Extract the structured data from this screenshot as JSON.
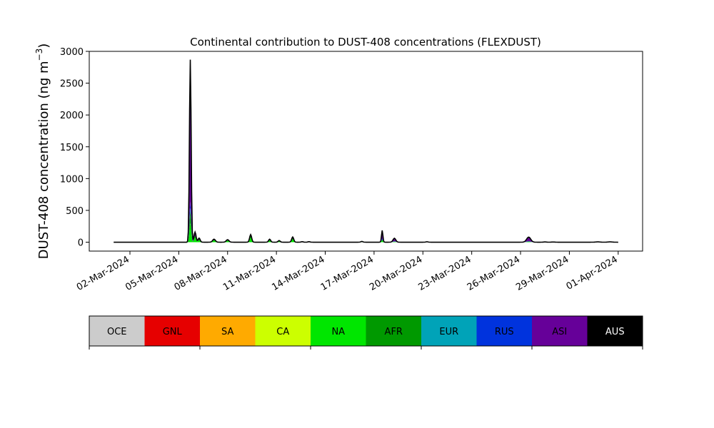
{
  "chart_data": {
    "type": "area",
    "stacked": true,
    "title": "Continental contribution to DUST-408 concentrations (FLEXDUST)",
    "ylabel_main": "DUST-408 concentration (ng m",
    "ylabel_sup": "−3",
    "ylabel_close": ")",
    "x_start": "2024-03-01",
    "x_end": "2024-04-01",
    "xlim": [
      "2024-02-28T12:00",
      "2024-04-02T12:00"
    ],
    "xticks": [
      "2024-03-02",
      "2024-03-05",
      "2024-03-08",
      "2024-03-11",
      "2024-03-14",
      "2024-03-17",
      "2024-03-20",
      "2024-03-23",
      "2024-03-26",
      "2024-03-29",
      "2024-04-01"
    ],
    "xtick_labels": [
      "02-Mar-2024",
      "05-Mar-2024",
      "08-Mar-2024",
      "11-Mar-2024",
      "14-Mar-2024",
      "17-Mar-2024",
      "20-Mar-2024",
      "23-Mar-2024",
      "26-Mar-2024",
      "29-Mar-2024",
      "01-Apr-2024"
    ],
    "ylim": [
      -140,
      3000
    ],
    "yticks": [
      0,
      500,
      1000,
      1500,
      2000,
      2500,
      3000
    ],
    "grid": false,
    "series_order": [
      "OCE",
      "GNL",
      "SA",
      "CA",
      "NA",
      "AFR",
      "EUR",
      "RUS",
      "ASI",
      "AUS"
    ],
    "colors": {
      "OCE": "#cccccc",
      "GNL": "#e60000",
      "SA": "#ffaa00",
      "CA": "#ccff00",
      "NA": "#00e600",
      "AFR": "#009900",
      "EUR": "#00a3b8",
      "RUS": "#0033dd",
      "ASI": "#660099",
      "AUS": "#000000"
    },
    "events": [
      {
        "t": "2024-03-05T17:00",
        "w": 2.5,
        "NA": 300,
        "AFR": 200,
        "EUR": 40,
        "RUS": 100,
        "ASI": 2100,
        "AUS": 130
      },
      {
        "t": "2024-03-06T00:00",
        "w": 3,
        "NA": 70,
        "AFR": 30,
        "ASI": 40,
        "AUS": 20
      },
      {
        "t": "2024-03-06T06:00",
        "w": 3,
        "NA": 30,
        "AFR": 15,
        "ASI": 10,
        "AUS": 10
      },
      {
        "t": "2024-03-07T04:00",
        "w": 4,
        "NA": 25,
        "AFR": 10,
        "ASI": 5,
        "AUS": 8
      },
      {
        "t": "2024-03-08T00:00",
        "w": 4,
        "NA": 20,
        "AFR": 8,
        "ASI": 5,
        "AUS": 7
      },
      {
        "t": "2024-03-09T10:00",
        "w": 3,
        "NA": 70,
        "AFR": 25,
        "ASI": 10,
        "AUS": 15
      },
      {
        "t": "2024-03-10T14:00",
        "w": 3,
        "NA": 25,
        "AFR": 10,
        "ASI": 5,
        "AUS": 7
      },
      {
        "t": "2024-03-11T04:00",
        "w": 3,
        "NA": 15,
        "AFR": 5,
        "AUS": 5
      },
      {
        "t": "2024-03-12T00:00",
        "w": 3,
        "NA": 45,
        "AFR": 15,
        "ASI": 10,
        "AUS": 12
      },
      {
        "t": "2024-03-12T14:00",
        "w": 3,
        "ASI": 6,
        "AUS": 2
      },
      {
        "t": "2024-03-13T00:00",
        "w": 3,
        "ASI": 6,
        "AUS": 2
      },
      {
        "t": "2024-03-16T06:00",
        "w": 3,
        "NA": 8,
        "ASI": 4
      },
      {
        "t": "2024-03-17T12:00",
        "w": 2,
        "NA": 30,
        "AFR": 10,
        "EUR": 5,
        "RUS": 15,
        "ASI": 110,
        "AUS": 15
      },
      {
        "t": "2024-03-18T06:00",
        "w": 4,
        "NA": 8,
        "AFR": 3,
        "RUS": 5,
        "ASI": 40,
        "AUS": 6
      },
      {
        "t": "2024-03-20T06:00",
        "w": 3,
        "ASI": 5,
        "AUS": 2
      },
      {
        "t": "2024-03-26T12:00",
        "w": 6,
        "NA": 8,
        "AFR": 4,
        "RUS": 5,
        "ASI": 55,
        "AUS": 8
      },
      {
        "t": "2024-03-27T12:00",
        "w": 4,
        "ASI": 4
      },
      {
        "t": "2024-03-28T00:00",
        "w": 4,
        "ASI": 3
      },
      {
        "t": "2024-03-30T18:00",
        "w": 6,
        "ASI": 4,
        "AUS": 1
      },
      {
        "t": "2024-03-31T12:00",
        "w": 6,
        "ASI": 4,
        "AUS": 1
      }
    ],
    "baseline": 0
  },
  "colorbar": {
    "categories": [
      {
        "label": "OCE",
        "color": "#cccccc",
        "text_color": "#000000"
      },
      {
        "label": "GNL",
        "color": "#e60000",
        "text_color": "#000000"
      },
      {
        "label": "SA",
        "color": "#ffaa00",
        "text_color": "#000000"
      },
      {
        "label": "CA",
        "color": "#ccff00",
        "text_color": "#000000"
      },
      {
        "label": "NA",
        "color": "#00e600",
        "text_color": "#000000"
      },
      {
        "label": "AFR",
        "color": "#009900",
        "text_color": "#000000"
      },
      {
        "label": "EUR",
        "color": "#00a3b8",
        "text_color": "#000000"
      },
      {
        "label": "RUS",
        "color": "#0033dd",
        "text_color": "#000000"
      },
      {
        "label": "ASI",
        "color": "#660099",
        "text_color": "#000000"
      },
      {
        "label": "AUS",
        "color": "#000000",
        "text_color": "#ffffff"
      }
    ]
  }
}
